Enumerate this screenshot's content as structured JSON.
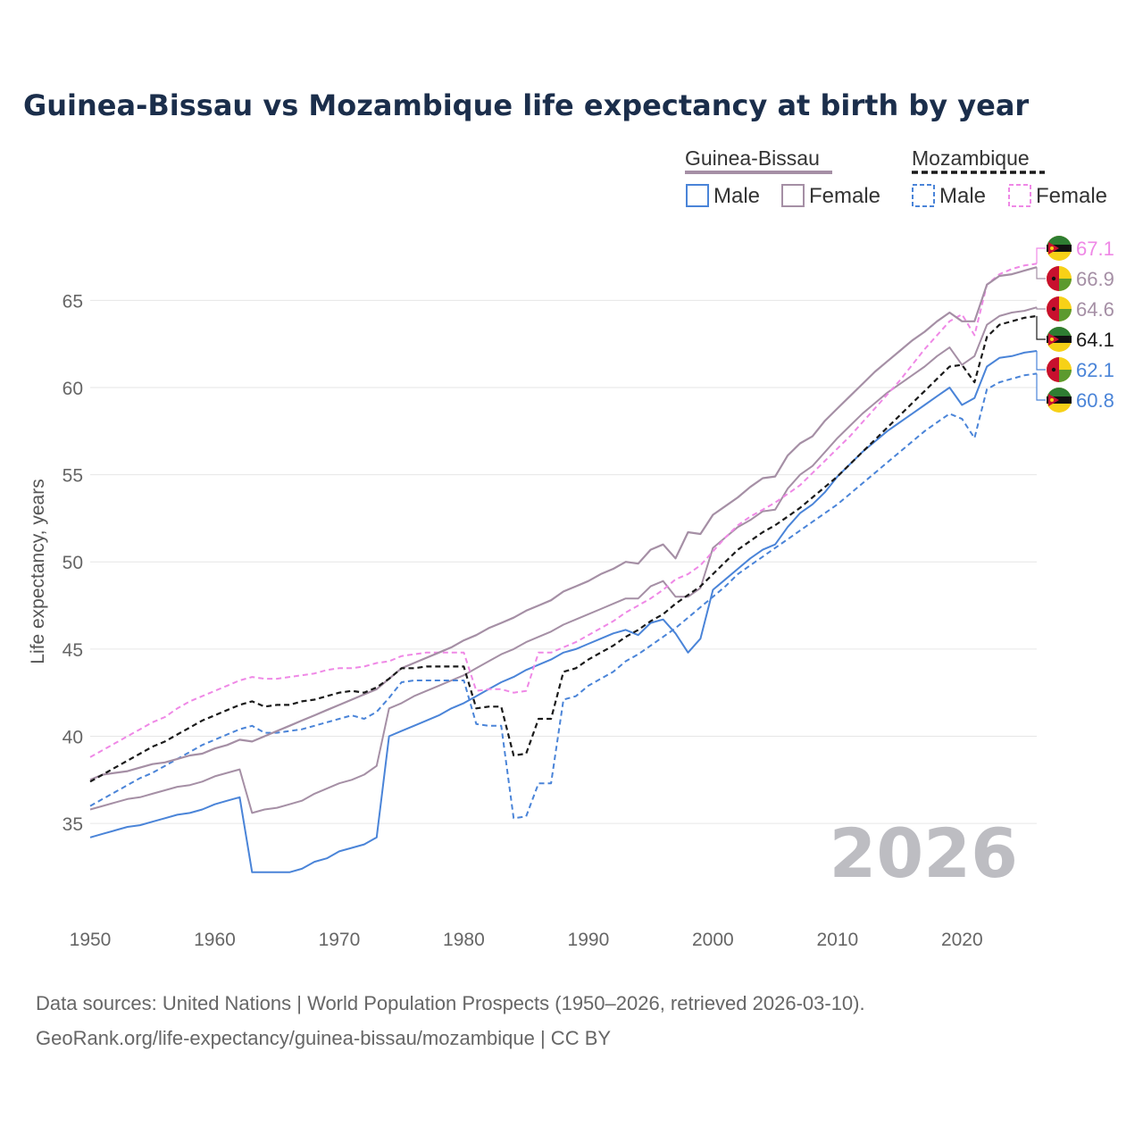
{
  "chart_data": {
    "type": "line",
    "title": "Guinea-Bissau vs Mozambique life expectancy at birth by year",
    "ylabel": "Life expectancy, years",
    "xlabel": "",
    "xlim": [
      1950,
      2026
    ],
    "ylim": [
      30.5,
      68.5
    ],
    "x_ticks": [
      "1950",
      "1960",
      "1970",
      "1980",
      "1990",
      "2000",
      "2010",
      "2020"
    ],
    "y_ticks": [
      "35",
      "40",
      "45",
      "50",
      "55",
      "60",
      "65"
    ],
    "legend": {
      "groups": [
        {
          "name": "Guinea-Bissau",
          "items": [
            "Male",
            "Female"
          ]
        },
        {
          "name": "Mozambique",
          "items": [
            "Male",
            "Female"
          ]
        }
      ]
    },
    "year_label": "2026",
    "x": [
      1950,
      1951,
      1952,
      1953,
      1954,
      1955,
      1956,
      1957,
      1958,
      1959,
      1960,
      1961,
      1962,
      1963,
      1964,
      1965,
      1966,
      1967,
      1968,
      1969,
      1970,
      1971,
      1972,
      1973,
      1974,
      1975,
      1976,
      1977,
      1978,
      1979,
      1980,
      1981,
      1982,
      1983,
      1984,
      1985,
      1986,
      1987,
      1988,
      1989,
      1990,
      1991,
      1992,
      1993,
      1994,
      1995,
      1996,
      1997,
      1998,
      1999,
      2000,
      2001,
      2002,
      2003,
      2004,
      2005,
      2006,
      2007,
      2008,
      2009,
      2010,
      2011,
      2012,
      2013,
      2014,
      2015,
      2016,
      2017,
      2018,
      2019,
      2020,
      2021,
      2022,
      2023,
      2024,
      2025,
      2026
    ],
    "series": [
      {
        "name": "Guinea-Bissau Male",
        "country": "Guinea-Bissau",
        "sex": "Male",
        "color": "#4a84d8",
        "dash": "solid",
        "end_label": "62.1",
        "values": [
          34.2,
          34.4,
          34.6,
          34.8,
          34.9,
          35.1,
          35.3,
          35.5,
          35.6,
          35.8,
          36.1,
          36.3,
          36.5,
          32.2,
          32.2,
          32.2,
          32.2,
          32.4,
          32.8,
          33.0,
          33.4,
          33.6,
          33.8,
          34.2,
          40.0,
          40.3,
          40.6,
          40.9,
          41.2,
          41.6,
          41.9,
          42.3,
          42.7,
          43.1,
          43.4,
          43.8,
          44.1,
          44.4,
          44.8,
          45.0,
          45.3,
          45.6,
          45.9,
          46.1,
          45.8,
          46.5,
          46.7,
          45.9,
          44.8,
          45.6,
          48.4,
          49.0,
          49.6,
          50.2,
          50.7,
          51.0,
          52.0,
          52.8,
          53.3,
          54.0,
          54.9,
          55.6,
          56.3,
          56.9,
          57.5,
          58.0,
          58.5,
          59.0,
          59.5,
          60.0,
          59.0,
          59.4,
          61.2,
          61.7,
          61.8,
          62.0,
          62.1
        ]
      },
      {
        "name": "Guinea-Bissau Female",
        "country": "Guinea-Bissau",
        "sex": "Female",
        "color": "#a58fa5",
        "dash": "solid",
        "end_label": "64.6",
        "values": [
          35.8,
          36.0,
          36.2,
          36.4,
          36.5,
          36.7,
          36.9,
          37.1,
          37.2,
          37.4,
          37.7,
          37.9,
          38.1,
          35.6,
          35.8,
          35.9,
          36.1,
          36.3,
          36.7,
          37.0,
          37.3,
          37.5,
          37.8,
          38.3,
          41.6,
          41.9,
          42.3,
          42.6,
          42.9,
          43.2,
          43.5,
          43.9,
          44.3,
          44.7,
          45.0,
          45.4,
          45.7,
          46.0,
          46.4,
          46.7,
          47.0,
          47.3,
          47.6,
          47.9,
          47.9,
          48.6,
          48.9,
          48.0,
          48.0,
          48.5,
          50.8,
          51.4,
          52.0,
          52.4,
          52.9,
          53.0,
          54.2,
          55.0,
          55.5,
          56.3,
          57.1,
          57.8,
          58.5,
          59.1,
          59.7,
          60.2,
          60.7,
          61.2,
          61.8,
          62.3,
          61.3,
          61.8,
          63.6,
          64.1,
          64.3,
          64.4,
          64.6
        ]
      },
      {
        "name": "Mozambique Male",
        "country": "Mozambique",
        "sex": "Male",
        "color": "#4a84d8",
        "dash": "dashed",
        "end_label": "60.8",
        "values": [
          36.0,
          36.4,
          36.8,
          37.2,
          37.6,
          37.9,
          38.3,
          38.7,
          39.1,
          39.5,
          39.8,
          40.1,
          40.4,
          40.6,
          40.2,
          40.2,
          40.3,
          40.4,
          40.6,
          40.8,
          41.0,
          41.2,
          41.0,
          41.4,
          42.2,
          43.1,
          43.2,
          43.2,
          43.2,
          43.2,
          43.2,
          40.7,
          40.6,
          40.6,
          35.3,
          35.4,
          37.3,
          37.3,
          42.1,
          42.3,
          42.9,
          43.3,
          43.7,
          44.3,
          44.7,
          45.2,
          45.7,
          46.2,
          46.8,
          47.4,
          48.0,
          48.6,
          49.3,
          49.8,
          50.3,
          50.8,
          51.3,
          51.8,
          52.3,
          52.8,
          53.3,
          53.9,
          54.5,
          55.1,
          55.7,
          56.3,
          56.9,
          57.5,
          58.0,
          58.5,
          58.2,
          57.1,
          59.9,
          60.3,
          60.5,
          60.7,
          60.8
        ]
      },
      {
        "name": "Mozambique Female",
        "country": "Mozambique",
        "sex": "Female",
        "color": "#ef88e6",
        "dash": "dashed",
        "end_label": "67.1",
        "values": [
          38.8,
          39.2,
          39.6,
          40.0,
          40.4,
          40.8,
          41.1,
          41.6,
          42.0,
          42.3,
          42.6,
          42.9,
          43.2,
          43.4,
          43.3,
          43.3,
          43.4,
          43.5,
          43.6,
          43.8,
          43.9,
          43.9,
          44.0,
          44.2,
          44.3,
          44.6,
          44.7,
          44.8,
          44.8,
          44.8,
          44.8,
          42.6,
          42.7,
          42.7,
          42.5,
          42.6,
          44.8,
          44.8,
          45.1,
          45.4,
          45.8,
          46.2,
          46.6,
          47.1,
          47.5,
          47.9,
          48.4,
          49.0,
          49.3,
          49.8,
          50.6,
          51.4,
          52.1,
          52.6,
          53.0,
          53.4,
          53.9,
          54.4,
          55.1,
          55.8,
          56.5,
          57.2,
          58.0,
          58.8,
          59.6,
          60.4,
          61.3,
          62.2,
          63.0,
          63.8,
          64.2,
          63.0,
          65.9,
          66.5,
          66.8,
          67.0,
          67.1
        ]
      },
      {
        "name": "Guinea-Bissau",
        "country": "Guinea-Bissau",
        "sex": "Both",
        "color": "#a58fa5",
        "dash": "solid",
        "end_label": "66.9",
        "values": [
          37.5,
          37.8,
          37.9,
          38.0,
          38.2,
          38.4,
          38.5,
          38.7,
          38.9,
          39.0,
          39.3,
          39.5,
          39.8,
          39.7,
          40.0,
          40.3,
          40.6,
          40.9,
          41.2,
          41.5,
          41.8,
          42.1,
          42.4,
          42.7,
          43.3,
          43.9,
          44.2,
          44.5,
          44.8,
          45.1,
          45.5,
          45.8,
          46.2,
          46.5,
          46.8,
          47.2,
          47.5,
          47.8,
          48.3,
          48.6,
          48.9,
          49.3,
          49.6,
          50.0,
          49.9,
          50.7,
          51.0,
          50.2,
          51.7,
          51.6,
          52.7,
          53.2,
          53.7,
          54.3,
          54.8,
          54.9,
          56.1,
          56.8,
          57.2,
          58.1,
          58.8,
          59.5,
          60.2,
          60.9,
          61.5,
          62.1,
          62.7,
          63.2,
          63.8,
          64.3,
          63.8,
          63.8,
          65.9,
          66.4,
          66.5,
          66.7,
          66.9
        ]
      },
      {
        "name": "Mozambique",
        "country": "Mozambique",
        "sex": "Both",
        "color": "#1a1a1a",
        "dash": "dashed",
        "end_label": "64.1",
        "values": [
          37.4,
          37.8,
          38.2,
          38.6,
          39.0,
          39.4,
          39.7,
          40.1,
          40.5,
          40.9,
          41.2,
          41.5,
          41.8,
          42.0,
          41.7,
          41.8,
          41.8,
          42.0,
          42.1,
          42.3,
          42.5,
          42.6,
          42.5,
          42.8,
          43.3,
          43.9,
          43.9,
          44.0,
          44.0,
          44.0,
          44.0,
          41.6,
          41.7,
          41.7,
          38.9,
          39.0,
          41.0,
          41.0,
          43.7,
          43.9,
          44.4,
          44.8,
          45.2,
          45.7,
          46.1,
          46.6,
          47.0,
          47.6,
          48.1,
          48.6,
          49.3,
          50.0,
          50.7,
          51.2,
          51.7,
          52.1,
          52.6,
          53.1,
          53.7,
          54.3,
          54.9,
          55.6,
          56.3,
          57.0,
          57.7,
          58.4,
          59.1,
          59.8,
          60.5,
          61.2,
          61.3,
          60.3,
          62.9,
          63.6,
          63.8,
          64.0,
          64.1
        ]
      }
    ]
  },
  "source": {
    "line1": "Data sources: United Nations | World Population Prospects (1950–2026, retrieved 2026-03-10).",
    "line2": "GeoRank.org/life-expectancy/guinea-bissau/mozambique | CC BY"
  }
}
